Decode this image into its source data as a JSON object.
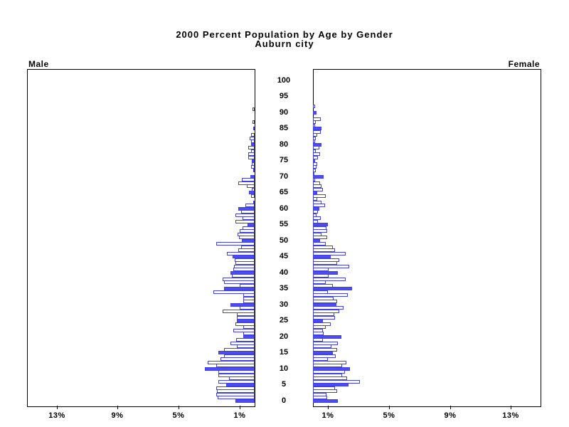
{
  "title": "2000 Percent Population by Age by Gender",
  "subtitle": "Auburn city",
  "side_labels": {
    "male": "Male",
    "female": "Female"
  },
  "colors": {
    "bar_fill": "#4c4cf0",
    "bar_outline": "#4040e8",
    "axis": "#000000",
    "background": "#ffffff"
  },
  "chart_data": {
    "type": "bar",
    "variant": "population-pyramid",
    "title": "2000 Percent Population by Age by Gender",
    "subtitle": "Auburn city",
    "orientation": "horizontal, male bars grow left, female bars grow right",
    "age_axis": {
      "min": 0,
      "max": 100,
      "tick_interval": 5,
      "tick_labels": [
        "0",
        "5",
        "10",
        "15",
        "20",
        "25",
        "30",
        "35",
        "40",
        "45",
        "50",
        "55",
        "60",
        "65",
        "70",
        "75",
        "80",
        "85",
        "90",
        "95",
        "100"
      ],
      "position": "center"
    },
    "percent_axis": {
      "unit": "percent of population",
      "male_tick_labels": [
        "13%",
        "9%",
        "5%",
        "1%"
      ],
      "female_tick_labels": [
        "1%",
        "5%",
        "9%",
        "13%"
      ],
      "tick_values": [
        1,
        5,
        9,
        13
      ],
      "range": [
        0,
        15
      ],
      "grid": false
    },
    "highlight_rule": "bars at ages divisible by 5 are solid filled, others hollow",
    "series": [
      {
        "name": "Male",
        "values_by_single_year_of_age_0_to_100": [
          1.26,
          2.43,
          2.5,
          2.47,
          2.54,
          1.85,
          2.39,
          1.69,
          2.39,
          2.39,
          3.29,
          2.5,
          3.08,
          2.26,
          2.03,
          2.39,
          2.03,
          1.15,
          1.61,
          1.23,
          0.73,
          0.73,
          1.41,
          0.73,
          1.26,
          1.15,
          1.15,
          1.15,
          2.12,
          1.0,
          1.61,
          0.73,
          0.73,
          0.73,
          2.73,
          2.0,
          1.0,
          2.0,
          2.12,
          1.5,
          1.61,
          1.41,
          1.35,
          1.26,
          1.3,
          1.46,
          1.8,
          1.07,
          0.87,
          2.53,
          0.85,
          1.02,
          1.1,
          1.0,
          0.8,
          0.45,
          1.26,
          0.8,
          1.25,
          0.88,
          1.08,
          0.6,
          0.11,
          0.0,
          0.22,
          0.36,
          0.19,
          0.53,
          1.07,
          0.84,
          0.3,
          0.0,
          0.11,
          0.22,
          0.19,
          0.19,
          0.43,
          0.4,
          0.25,
          0.43,
          0.22,
          0.23,
          0.34,
          0.22,
          0.0,
          0.1,
          0.0,
          0.14,
          0.0,
          0.0,
          0.0,
          0.14,
          0.0,
          0.0,
          0.0,
          0.0,
          0.0,
          0.0,
          0.0,
          0.0,
          0.0
        ]
      },
      {
        "name": "Female",
        "values_by_single_year_of_age_0_to_100": [
          1.65,
          0.95,
          0.9,
          1.6,
          1.45,
          2.35,
          3.1,
          2.25,
          1.9,
          2.1,
          2.45,
          1.9,
          2.2,
          1.0,
          1.5,
          1.3,
          1.6,
          1.2,
          1.65,
          0.65,
          1.85,
          0.7,
          0.65,
          0.85,
          1.15,
          0.65,
          1.45,
          1.4,
          1.75,
          2.0,
          1.55,
          1.6,
          1.35,
          2.3,
          1.0,
          2.55,
          1.3,
          0.85,
          2.15,
          1.05,
          1.65,
          1.05,
          2.4,
          1.6,
          1.75,
          1.15,
          2.15,
          1.45,
          1.3,
          0.85,
          0.45,
          0.95,
          0.55,
          0.95,
          0.9,
          1.0,
          0.35,
          0.5,
          0.25,
          0.35,
          0.4,
          0.8,
          0.55,
          0.3,
          0.85,
          0.3,
          0.65,
          0.55,
          0.45,
          0.15,
          0.72,
          0.05,
          0.2,
          0.22,
          0.3,
          0.15,
          0.35,
          0.45,
          0.2,
          0.42,
          0.56,
          0.12,
          0.19,
          0.3,
          0.5,
          0.55,
          0.14,
          0.19,
          0.5,
          0.0,
          0.22,
          0.0,
          0.12,
          0.0,
          0.0,
          0.0,
          0.0,
          0.0,
          0.0,
          0.0,
          0.0
        ]
      }
    ]
  }
}
